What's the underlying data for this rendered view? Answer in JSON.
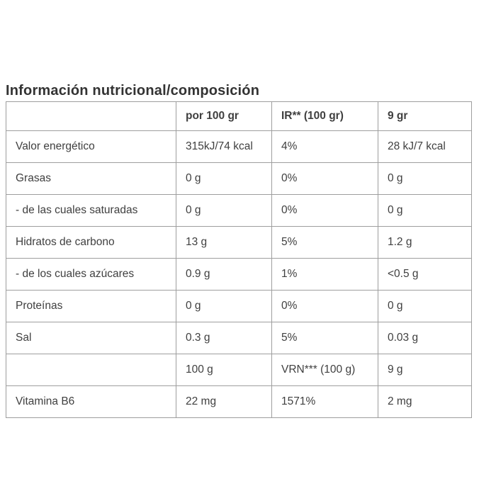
{
  "page": {
    "background": "#ffffff",
    "text_color": "#3f3f3f",
    "title_color": "#333333",
    "border_color": "#9e9e9e"
  },
  "title": "Información nutricional/composición",
  "table": {
    "columns": [
      "",
      "por 100 gr",
      "IR** (100 gr)",
      "9 gr"
    ],
    "rows": [
      [
        "Valor energético",
        "315kJ/74 kcal",
        "4%",
        "28 kJ/7 kcal"
      ],
      [
        "Grasas",
        "0 g",
        "0%",
        "0 g"
      ],
      [
        "- de las cuales saturadas",
        "0 g",
        "0%",
        "0 g"
      ],
      [
        "Hidratos de carbono",
        "13 g",
        "5%",
        "1.2 g"
      ],
      [
        "- de los cuales azúcares",
        "0.9 g",
        "1%",
        "<0.5 g"
      ],
      [
        "Proteínas",
        "0 g",
        "0%",
        "0 g"
      ],
      [
        "Sal",
        "0.3 g",
        "5%",
        "0.03 g"
      ],
      [
        "",
        "100 g",
        "VRN*** (100 g)",
        "9 g"
      ],
      [
        "Vitamina B6",
        "22 mg",
        "1571%",
        "2 mg"
      ]
    ]
  }
}
